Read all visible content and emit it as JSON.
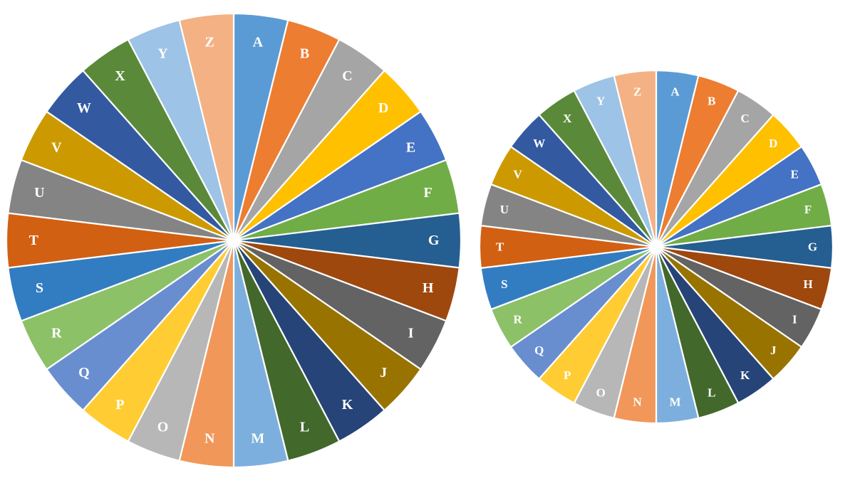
{
  "chart_data": [
    {
      "type": "pie",
      "categories": [
        "A",
        "B",
        "C",
        "D",
        "E",
        "F",
        "G",
        "H",
        "I",
        "J",
        "K",
        "L",
        "M",
        "N",
        "O",
        "P",
        "Q",
        "R",
        "S",
        "T",
        "U",
        "V",
        "W",
        "X",
        "Y",
        "Z"
      ],
      "values": [
        1,
        1,
        1,
        1,
        1,
        1,
        1,
        1,
        1,
        1,
        1,
        1,
        1,
        1,
        1,
        1,
        1,
        1,
        1,
        1,
        1,
        1,
        1,
        1,
        1,
        1
      ],
      "colors": [
        "#5B9BD5",
        "#ED7D31",
        "#A5A5A5",
        "#FFC000",
        "#4472C4",
        "#70AD47",
        "#255E91",
        "#9E480E",
        "#636363",
        "#997300",
        "#264478",
        "#43682B",
        "#7CAFDD",
        "#F1975A",
        "#B7B7B7",
        "#FFCD33",
        "#698ED0",
        "#8CC168",
        "#327DC2",
        "#D26012",
        "#848484",
        "#CC9A00",
        "#335AA1",
        "#5A8A39",
        "#9DC3E6",
        "#F4B183"
      ],
      "title": "",
      "legend": "none"
    },
    {
      "type": "pie",
      "categories": [
        "A",
        "B",
        "C",
        "D",
        "E",
        "F",
        "G",
        "H",
        "I",
        "J",
        "K",
        "L",
        "M",
        "N",
        "O",
        "P",
        "Q",
        "R",
        "S",
        "T",
        "U",
        "V",
        "W",
        "X",
        "Y",
        "Z"
      ],
      "values": [
        1,
        1,
        1,
        1,
        1,
        1,
        1,
        1,
        1,
        1,
        1,
        1,
        1,
        1,
        1,
        1,
        1,
        1,
        1,
        1,
        1,
        1,
        1,
        1,
        1,
        1
      ],
      "colors": [
        "#5B9BD5",
        "#ED7D31",
        "#A5A5A5",
        "#FFC000",
        "#4472C4",
        "#70AD47",
        "#255E91",
        "#9E480E",
        "#636363",
        "#997300",
        "#264478",
        "#43682B",
        "#7CAFDD",
        "#F1975A",
        "#B7B7B7",
        "#FFCD33",
        "#698ED0",
        "#8CC168",
        "#327DC2",
        "#D26012",
        "#848484",
        "#CC9A00",
        "#335AA1",
        "#5A8A39",
        "#9DC3E6",
        "#F4B183"
      ],
      "title": "",
      "legend": "none"
    }
  ]
}
